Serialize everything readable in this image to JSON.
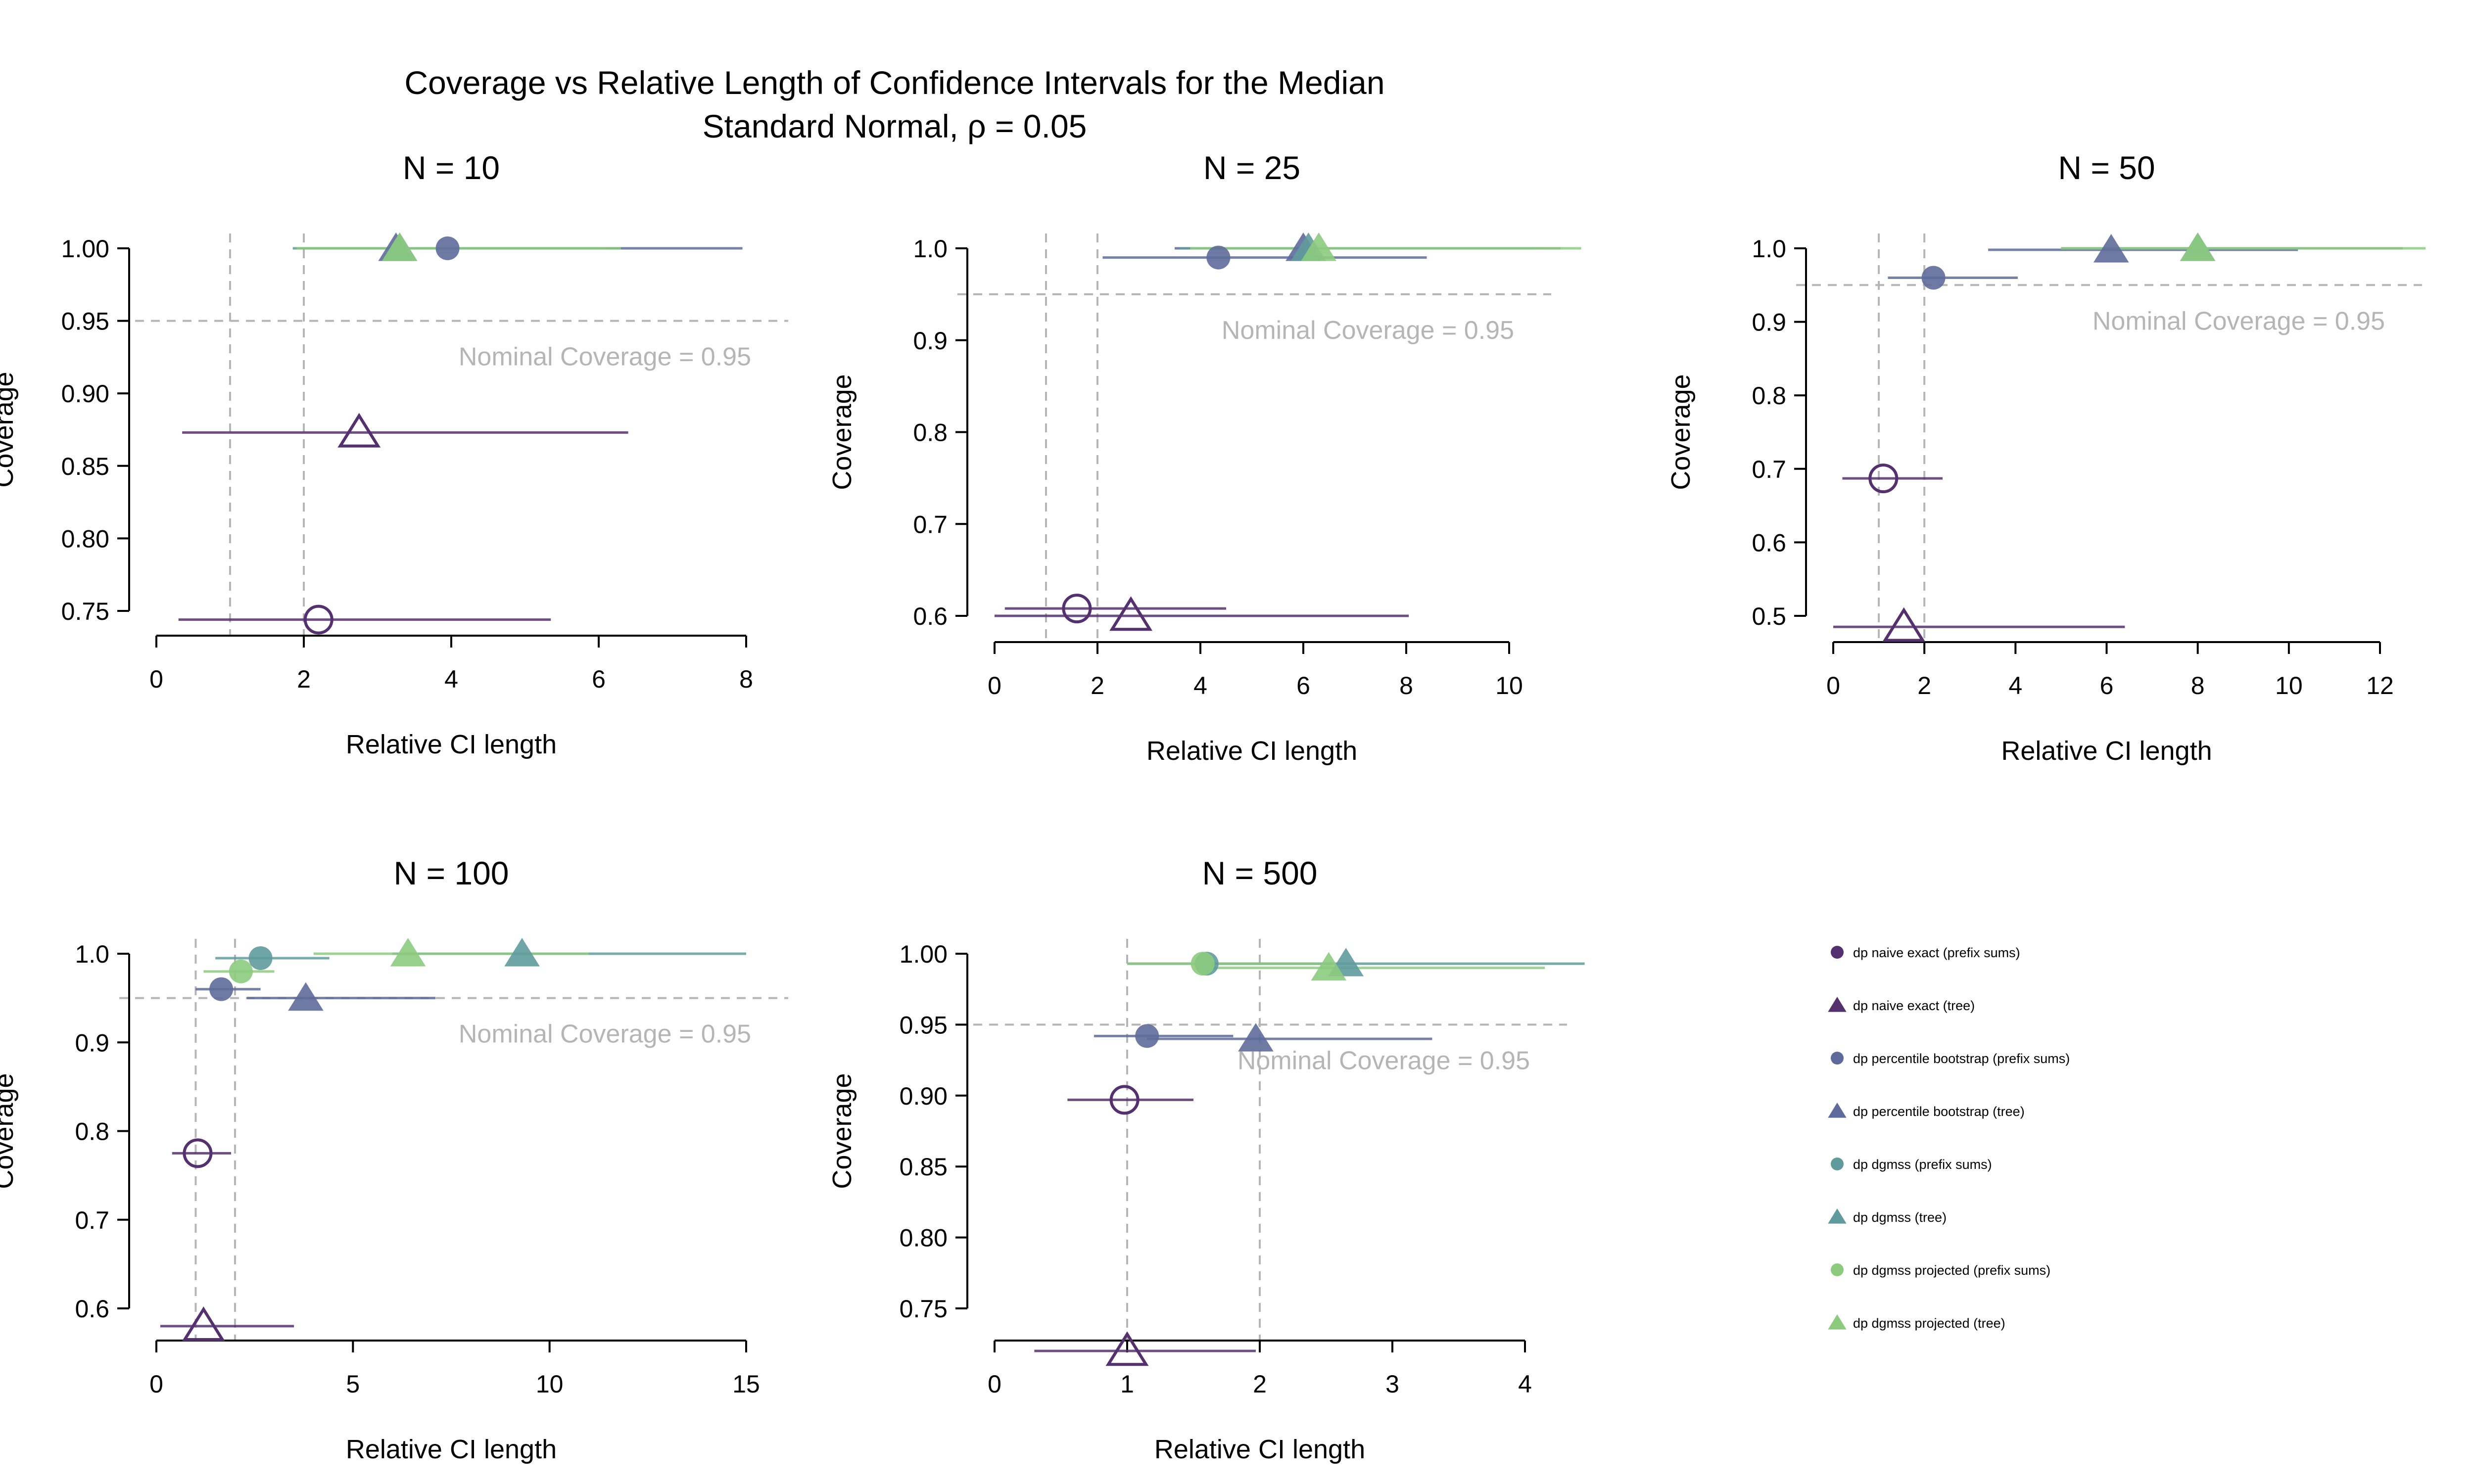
{
  "figure": {
    "title": "Coverage vs Relative Length of Confidence Intervals for the Median",
    "subtitle": "Standard Normal,  ρ = 0.05"
  },
  "colors": {
    "naive": "#55306e",
    "percentile": "#5e6b9a",
    "dgmss": "#5f9b9c",
    "projected": "#8ccb7e",
    "reference": "#b5b5b5",
    "nominal_text": "#b5b5b5"
  },
  "legend": [
    {
      "label": "dp naive exact (prefix sums)",
      "marker": "circle",
      "color_key": "naive"
    },
    {
      "label": "dp naive exact (tree)",
      "marker": "triangle",
      "color_key": "naive"
    },
    {
      "label": "dp percentile bootstrap (prefix sums)",
      "marker": "circle",
      "color_key": "percentile"
    },
    {
      "label": "dp percentile bootstrap (tree)",
      "marker": "triangle",
      "color_key": "percentile"
    },
    {
      "label": "dp dgmss (prefix sums)",
      "marker": "circle",
      "color_key": "dgmss"
    },
    {
      "label": "dp dgmss (tree)",
      "marker": "triangle",
      "color_key": "dgmss"
    },
    {
      "label": "dp dgmss projected (prefix sums)",
      "marker": "circle",
      "color_key": "projected"
    },
    {
      "label": "dp dgmss projected (tree)",
      "marker": "triangle",
      "color_key": "projected"
    }
  ],
  "chart_data": [
    {
      "type": "scatter",
      "title": "N = 10",
      "xlabel": "Relative CI length",
      "ylabel": "Coverage",
      "xlim": [
        0,
        8
      ],
      "ylim": [
        0.75,
        1.0
      ],
      "xticks": [
        0,
        2,
        4,
        6,
        8
      ],
      "yticks": [
        0.75,
        0.8,
        0.85,
        0.9,
        0.95,
        1.0
      ],
      "ytick_labels": [
        "0.75",
        "0.80",
        "0.85",
        "0.90",
        "0.95",
        "1.00"
      ],
      "nominal_coverage": 0.95,
      "nominal_label": "Nominal Coverage = 0.95",
      "vlines": [
        1,
        2
      ],
      "series": [
        {
          "color_key": "naive",
          "marker": "circle",
          "filled": false,
          "x": 2.2,
          "lo": 0.3,
          "hi": 5.35,
          "y": 0.744
        },
        {
          "color_key": "naive",
          "marker": "triangle",
          "filled": false,
          "x": 2.75,
          "lo": 0.35,
          "hi": 6.4,
          "y": 0.873
        },
        {
          "color_key": "percentile",
          "marker": "circle",
          "filled": true,
          "x": 3.95,
          "lo": 1.9,
          "hi": 7.95,
          "y": 1.0
        },
        {
          "color_key": "percentile",
          "marker": "triangle",
          "filled": true,
          "x": 3.25,
          "lo": 1.9,
          "hi": 6.3,
          "y": 1.0
        },
        {
          "color_key": "dgmss",
          "marker": "triangle",
          "filled": true,
          "x": 3.3,
          "lo": 1.85,
          "hi": 6.1,
          "y": 1.0
        },
        {
          "color_key": "projected",
          "marker": "triangle",
          "filled": true,
          "x": 3.3,
          "lo": 1.9,
          "hi": 6.3,
          "y": 1.0
        }
      ]
    },
    {
      "type": "scatter",
      "title": "N = 25",
      "xlabel": "Relative CI length",
      "ylabel": "Coverage",
      "xlim": [
        0,
        10
      ],
      "ylim": [
        0.6,
        1.0
      ],
      "xticks": [
        0,
        2,
        4,
        6,
        8,
        10
      ],
      "yticks": [
        0.6,
        0.7,
        0.8,
        0.9,
        1.0
      ],
      "ytick_labels": [
        "0.6",
        "0.7",
        "0.8",
        "0.9",
        "1.0"
      ],
      "nominal_coverage": 0.95,
      "nominal_label": "Nominal Coverage = 0.95",
      "vlines": [
        1,
        2
      ],
      "series": [
        {
          "color_key": "naive",
          "marker": "circle",
          "filled": false,
          "x": 1.6,
          "lo": 0.2,
          "hi": 4.5,
          "y": 0.608
        },
        {
          "color_key": "naive",
          "marker": "triangle",
          "filled": false,
          "x": 2.65,
          "lo": 0.0,
          "hi": 8.05,
          "y": 0.6
        },
        {
          "color_key": "percentile",
          "marker": "circle",
          "filled": true,
          "x": 4.35,
          "lo": 2.1,
          "hi": 8.4,
          "y": 0.99
        },
        {
          "color_key": "percentile",
          "marker": "triangle",
          "filled": true,
          "x": 6.0,
          "lo": 3.5,
          "hi": 10.5,
          "y": 1.0
        },
        {
          "color_key": "dgmss",
          "marker": "triangle",
          "filled": true,
          "x": 6.1,
          "lo": 3.6,
          "hi": 11.0,
          "y": 1.0
        },
        {
          "color_key": "projected",
          "marker": "triangle",
          "filled": true,
          "x": 6.3,
          "lo": 3.8,
          "hi": 11.4,
          "y": 1.0
        }
      ]
    },
    {
      "type": "scatter",
      "title": "N = 50",
      "xlabel": "Relative CI length",
      "ylabel": "Coverage",
      "xlim": [
        0,
        12
      ],
      "ylim": [
        0.5,
        1.0
      ],
      "xticks": [
        0,
        2,
        4,
        6,
        8,
        10,
        12
      ],
      "yticks": [
        0.5,
        0.6,
        0.7,
        0.8,
        0.9,
        1.0
      ],
      "ytick_labels": [
        "0.5",
        "0.6",
        "0.7",
        "0.8",
        "0.9",
        "1.0"
      ],
      "nominal_coverage": 0.95,
      "nominal_label": "Nominal Coverage = 0.95",
      "vlines": [
        1,
        2
      ],
      "series": [
        {
          "color_key": "naive",
          "marker": "circle",
          "filled": false,
          "x": 1.1,
          "lo": 0.2,
          "hi": 2.4,
          "y": 0.687
        },
        {
          "color_key": "naive",
          "marker": "triangle",
          "filled": false,
          "x": 1.55,
          "lo": 0.0,
          "hi": 6.4,
          "y": 0.485
        },
        {
          "color_key": "percentile",
          "marker": "circle",
          "filled": true,
          "x": 2.2,
          "lo": 1.2,
          "hi": 4.05,
          "y": 0.96
        },
        {
          "color_key": "percentile",
          "marker": "triangle",
          "filled": true,
          "x": 6.1,
          "lo": 3.4,
          "hi": 10.2,
          "y": 0.998
        },
        {
          "color_key": "dgmss",
          "marker": "triangle",
          "filled": true,
          "x": 8.0,
          "lo": 5.0,
          "hi": 12.5,
          "y": 1.0
        },
        {
          "color_key": "projected",
          "marker": "triangle",
          "filled": true,
          "x": 8.0,
          "lo": 5.0,
          "hi": 13.0,
          "y": 1.0
        }
      ]
    },
    {
      "type": "scatter",
      "title": "N = 100",
      "xlabel": "Relative CI length",
      "ylabel": "Coverage",
      "xlim": [
        0,
        15
      ],
      "ylim": [
        0.6,
        1.0
      ],
      "xticks": [
        0,
        5,
        10,
        15
      ],
      "yticks": [
        0.6,
        0.7,
        0.8,
        0.9,
        1.0
      ],
      "ytick_labels": [
        "0.6",
        "0.7",
        "0.8",
        "0.9",
        "1.0"
      ],
      "nominal_coverage": 0.95,
      "nominal_label": "Nominal Coverage = 0.95",
      "vlines": [
        1,
        2
      ],
      "series": [
        {
          "color_key": "naive",
          "marker": "circle",
          "filled": false,
          "x": 1.05,
          "lo": 0.4,
          "hi": 1.9,
          "y": 0.775
        },
        {
          "color_key": "naive",
          "marker": "triangle",
          "filled": false,
          "x": 1.2,
          "lo": 0.1,
          "hi": 3.5,
          "y": 0.58
        },
        {
          "color_key": "percentile",
          "marker": "circle",
          "filled": true,
          "x": 1.65,
          "lo": 1.0,
          "hi": 2.65,
          "y": 0.96
        },
        {
          "color_key": "percentile",
          "marker": "triangle",
          "filled": true,
          "x": 3.8,
          "lo": 2.3,
          "hi": 7.1,
          "y": 0.95
        },
        {
          "color_key": "dgmss",
          "marker": "circle",
          "filled": true,
          "x": 2.65,
          "lo": 1.5,
          "hi": 4.4,
          "y": 0.995
        },
        {
          "color_key": "dgmss",
          "marker": "triangle",
          "filled": true,
          "x": 9.3,
          "lo": 6.0,
          "hi": 15.0,
          "y": 1.0
        },
        {
          "color_key": "projected",
          "marker": "circle",
          "filled": true,
          "x": 2.15,
          "lo": 1.2,
          "hi": 3.0,
          "y": 0.98
        },
        {
          "color_key": "projected",
          "marker": "triangle",
          "filled": true,
          "x": 6.4,
          "lo": 4.0,
          "hi": 11.0,
          "y": 1.0
        }
      ]
    },
    {
      "type": "scatter",
      "title": "N = 500",
      "xlabel": "Relative CI length",
      "ylabel": "Coverage",
      "xlim": [
        0,
        4
      ],
      "ylim": [
        0.75,
        1.0
      ],
      "xticks": [
        0,
        1,
        2,
        3,
        4
      ],
      "yticks": [
        0.75,
        0.8,
        0.85,
        0.9,
        0.95,
        1.0
      ],
      "ytick_labels": [
        "0.75",
        "0.80",
        "0.85",
        "0.90",
        "0.95",
        "1.00"
      ],
      "nominal_coverage": 0.95,
      "nominal_label": "Nominal Coverage = 0.95",
      "vlines": [
        1,
        2
      ],
      "series": [
        {
          "color_key": "naive",
          "marker": "circle",
          "filled": false,
          "x": 0.98,
          "lo": 0.55,
          "hi": 1.5,
          "y": 0.897
        },
        {
          "color_key": "naive",
          "marker": "triangle",
          "filled": false,
          "x": 1.0,
          "lo": 0.3,
          "hi": 1.97,
          "y": 0.72
        },
        {
          "color_key": "percentile",
          "marker": "circle",
          "filled": true,
          "x": 1.15,
          "lo": 0.75,
          "hi": 1.8,
          "y": 0.942
        },
        {
          "color_key": "percentile",
          "marker": "triangle",
          "filled": true,
          "x": 1.97,
          "lo": 1.15,
          "hi": 3.3,
          "y": 0.94
        },
        {
          "color_key": "dgmss",
          "marker": "circle",
          "filled": true,
          "x": 1.6,
          "lo": 1.0,
          "hi": 2.55,
          "y": 0.993
        },
        {
          "color_key": "dgmss",
          "marker": "triangle",
          "filled": true,
          "x": 2.65,
          "lo": 1.6,
          "hi": 4.45,
          "y": 0.993
        },
        {
          "color_key": "projected",
          "marker": "circle",
          "filled": true,
          "x": 1.57,
          "lo": 1.0,
          "hi": 2.5,
          "y": 0.993
        },
        {
          "color_key": "projected",
          "marker": "triangle",
          "filled": true,
          "x": 2.52,
          "lo": 1.55,
          "hi": 4.15,
          "y": 0.99
        }
      ]
    }
  ]
}
